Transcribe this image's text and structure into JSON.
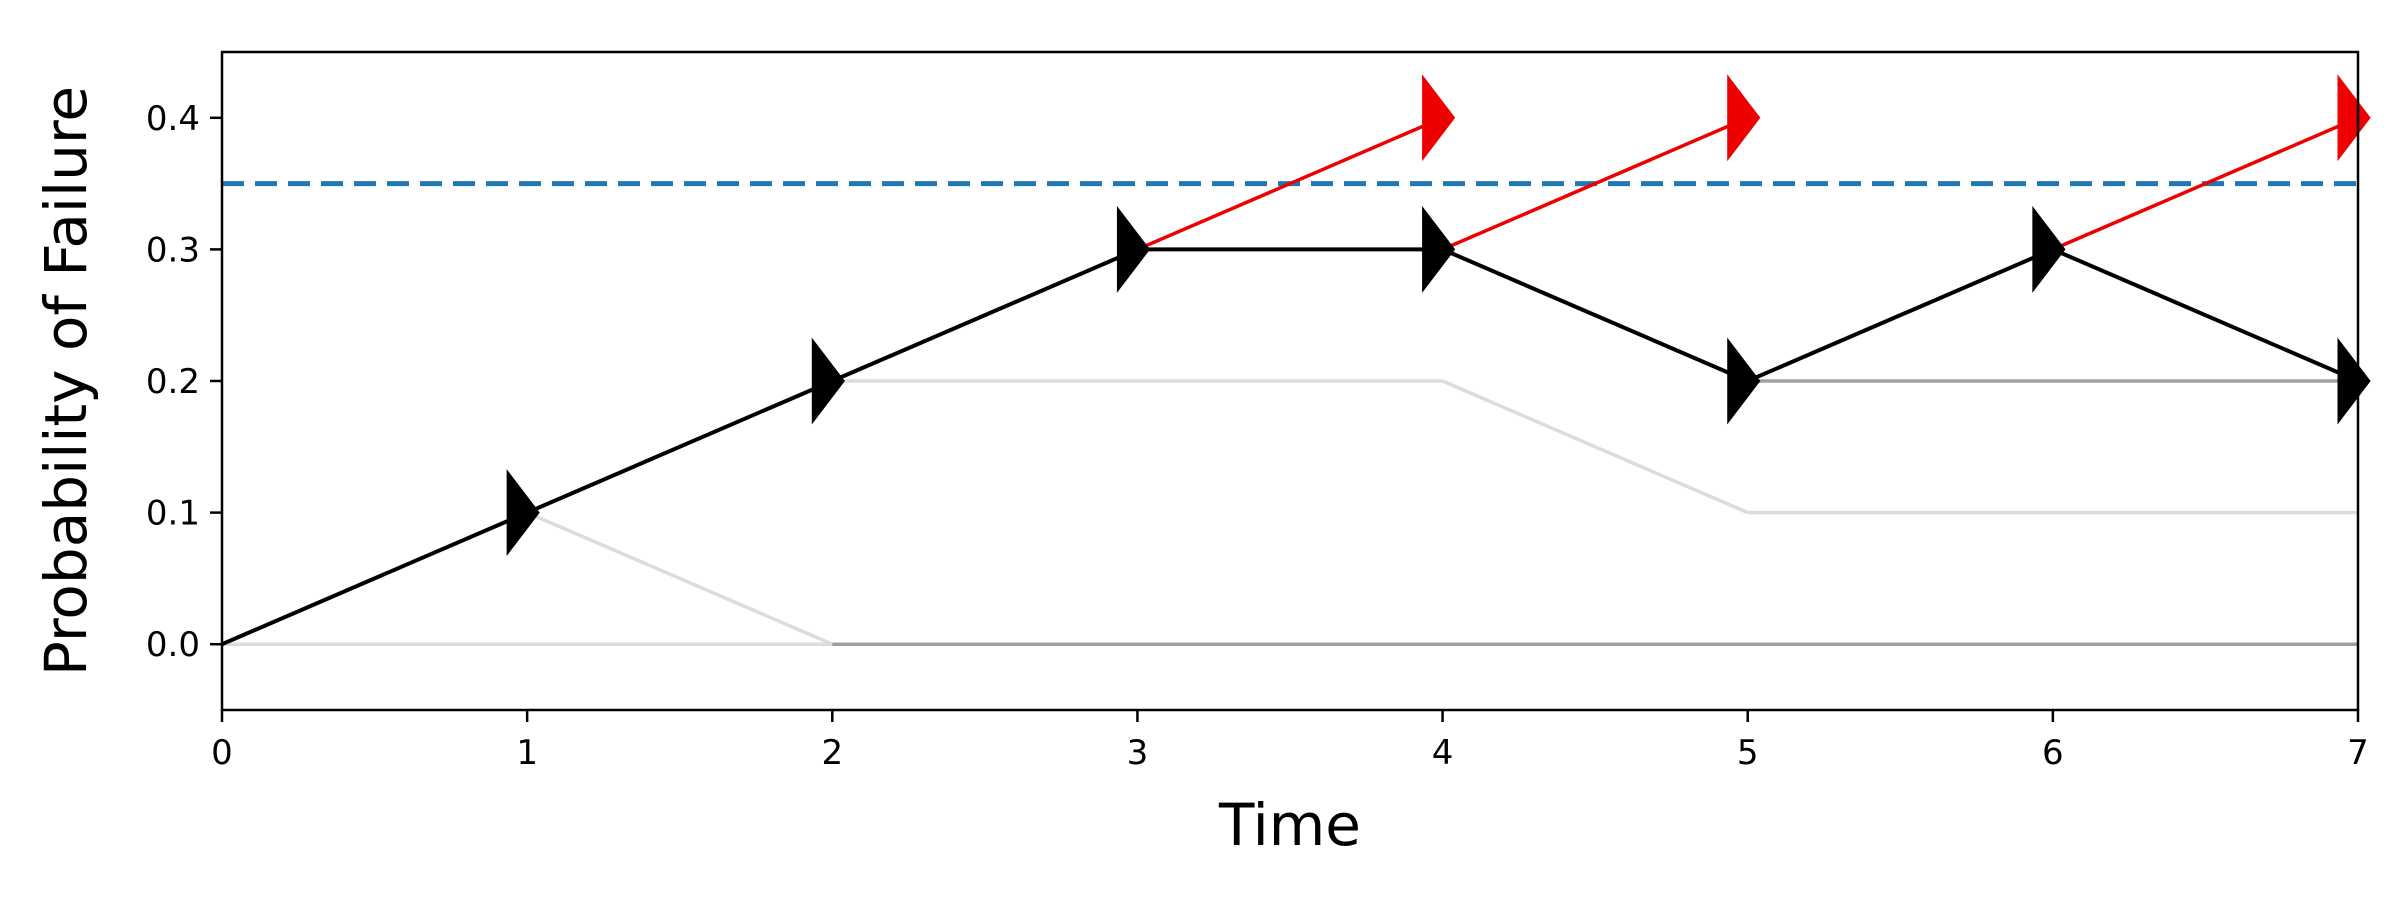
{
  "chart_data": {
    "type": "line",
    "xlabel": "Time",
    "ylabel": "Probability of Failure",
    "xlim": [
      0,
      7
    ],
    "ylim": [
      -0.05,
      0.45
    ],
    "x_ticks": [
      0,
      1,
      2,
      3,
      4,
      5,
      6,
      7
    ],
    "y_ticks": [
      0.0,
      0.1,
      0.2,
      0.3,
      0.4
    ],
    "x_tick_labels": [
      "0",
      "1",
      "2",
      "3",
      "4",
      "5",
      "6",
      "7"
    ],
    "y_tick_labels": [
      "0.0",
      "0.1",
      "0.2",
      "0.3",
      "0.4"
    ],
    "grid": false,
    "threshold": {
      "y": 0.35,
      "color": "#1f77b4",
      "style": "dashed"
    },
    "series": [
      {
        "role": "explored-tree",
        "color": "#dcdcdc",
        "segments": [
          {
            "x": [
              0,
              7
            ],
            "y": [
              0.0,
              0.0
            ]
          },
          {
            "x": [
              1,
              2
            ],
            "y": [
              0.1,
              0.0
            ]
          },
          {
            "x": [
              2,
              4
            ],
            "y": [
              0.2,
              0.2
            ]
          },
          {
            "x": [
              4,
              5
            ],
            "y": [
              0.2,
              0.1
            ]
          },
          {
            "x": [
              5,
              7
            ],
            "y": [
              0.1,
              0.1
            ]
          }
        ]
      },
      {
        "role": "explored-tree-dark",
        "color": "#a0a0a0",
        "segments": [
          {
            "x": [
              2,
              7
            ],
            "y": [
              0.0,
              0.0
            ]
          },
          {
            "x": [
              5,
              7
            ],
            "y": [
              0.2,
              0.2
            ]
          }
        ]
      },
      {
        "role": "rejected-branches",
        "color": "#ee0000",
        "segments": [
          {
            "x": [
              3,
              4
            ],
            "y": [
              0.3,
              0.4
            ]
          },
          {
            "x": [
              4,
              5
            ],
            "y": [
              0.3,
              0.4
            ]
          },
          {
            "x": [
              6,
              7
            ],
            "y": [
              0.3,
              0.4
            ]
          }
        ]
      },
      {
        "role": "selected-path",
        "color": "#000000",
        "x": [
          0,
          1,
          2,
          3,
          4,
          5,
          6,
          7
        ],
        "y": [
          0.0,
          0.1,
          0.2,
          0.3,
          0.3,
          0.2,
          0.3,
          0.2
        ]
      }
    ]
  }
}
